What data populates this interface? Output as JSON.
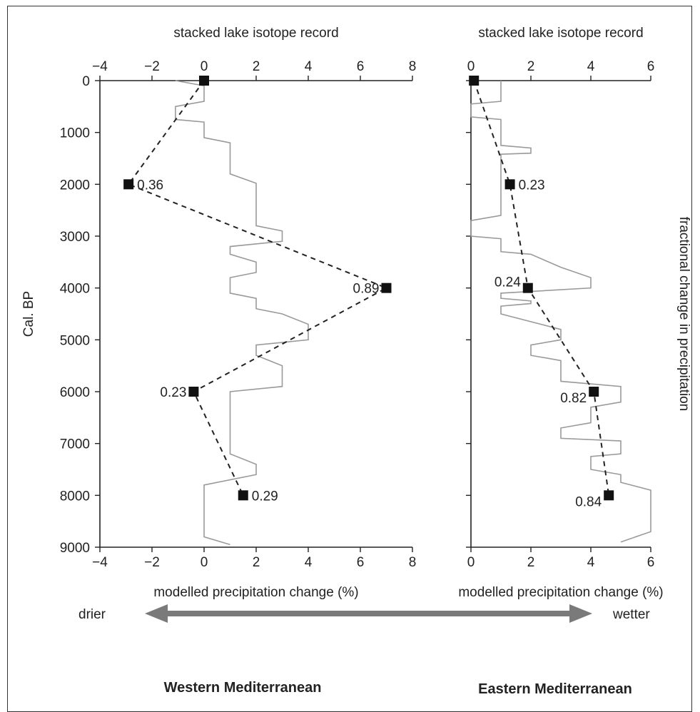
{
  "chart_data": [
    {
      "type": "line",
      "region": "Western Mediterranean",
      "top_xlabel": "stacked lake isotope record",
      "xlabel": "modelled precipitation change (%)",
      "ylabel": "Cal. BP",
      "xlim": [
        -4,
        8
      ],
      "ylim": [
        0,
        9000
      ],
      "y_inverted": true,
      "xticks": [
        -4,
        -2,
        0,
        2,
        4,
        6,
        8
      ],
      "yticks": [
        0,
        1000,
        2000,
        3000,
        4000,
        5000,
        6000,
        7000,
        8000,
        9000
      ],
      "model_points": {
        "x": [
          0,
          -2.9,
          7.0,
          -0.4,
          1.5
        ],
        "y": [
          0,
          2000,
          4000,
          6000,
          8000
        ],
        "labels": [
          "",
          "0.36",
          "0.89",
          "0.23",
          "0.29"
        ]
      },
      "isotope_record_steps": [
        [
          -1.1,
          0
        ],
        [
          0,
          100
        ],
        [
          0,
          200
        ],
        [
          0,
          300
        ],
        [
          0,
          400
        ],
        [
          -1.1,
          500
        ],
        [
          -1.1,
          600
        ],
        [
          -1.1,
          700
        ],
        [
          -1.1,
          750
        ],
        [
          0,
          800
        ],
        [
          0,
          1000
        ],
        [
          0,
          1100
        ],
        [
          1,
          1200
        ],
        [
          1,
          1400
        ],
        [
          1,
          1600
        ],
        [
          1,
          1800
        ],
        [
          2,
          1980
        ],
        [
          2,
          2200
        ],
        [
          2,
          2500
        ],
        [
          2,
          2600
        ],
        [
          2,
          2800
        ],
        [
          3,
          2900
        ],
        [
          3,
          3100
        ],
        [
          1,
          3200
        ],
        [
          1,
          3350
        ],
        [
          2,
          3500
        ],
        [
          2,
          3700
        ],
        [
          1,
          3800
        ],
        [
          1,
          3900
        ],
        [
          1,
          4000
        ],
        [
          1,
          4100
        ],
        [
          2,
          4200
        ],
        [
          2,
          4400
        ],
        [
          3,
          4500
        ],
        [
          4,
          4700
        ],
        [
          4,
          5000
        ],
        [
          2,
          5100
        ],
        [
          2,
          5300
        ],
        [
          3,
          5500
        ],
        [
          3,
          5700
        ],
        [
          3,
          5900
        ],
        [
          1,
          6000
        ],
        [
          1,
          6200
        ],
        [
          1,
          6400
        ],
        [
          1,
          6800
        ],
        [
          1,
          7000
        ],
        [
          1,
          7200
        ],
        [
          2,
          7400
        ],
        [
          2,
          7600
        ],
        [
          0,
          7800
        ],
        [
          0,
          8000
        ],
        [
          0,
          8200
        ],
        [
          0,
          8600
        ],
        [
          0,
          8800
        ],
        [
          1,
          8950
        ]
      ]
    },
    {
      "type": "line",
      "region": "Eastern Mediterranean",
      "top_xlabel": "stacked lake isotope record",
      "xlabel": "modelled precipitation change (%)",
      "y2label": "fractional change in precipitation",
      "xlim": [
        0,
        6
      ],
      "ylim": [
        0,
        9000
      ],
      "y_inverted": true,
      "xticks": [
        0,
        2,
        4,
        6
      ],
      "model_points": {
        "x": [
          0.1,
          1.3,
          1.9,
          4.1,
          4.6
        ],
        "y": [
          0,
          2000,
          4000,
          6000,
          8000
        ],
        "labels": [
          "",
          "0.23",
          "0.24",
          "0.82",
          "0.84"
        ]
      },
      "isotope_record_steps": [
        [
          1,
          0
        ],
        [
          1,
          400
        ],
        [
          0,
          450
        ],
        [
          0,
          700
        ],
        [
          1,
          750
        ],
        [
          1,
          1250
        ],
        [
          2,
          1300
        ],
        [
          2,
          1400
        ],
        [
          1,
          1420
        ],
        [
          1,
          1600
        ],
        [
          1,
          2000
        ],
        [
          1,
          2600
        ],
        [
          0,
          2700
        ],
        [
          0,
          3000
        ],
        [
          1,
          3050
        ],
        [
          1,
          3300
        ],
        [
          2,
          3350
        ],
        [
          3,
          3600
        ],
        [
          4,
          3800
        ],
        [
          4,
          4000
        ],
        [
          1,
          4100
        ],
        [
          1,
          4200
        ],
        [
          2,
          4250
        ],
        [
          2,
          4300
        ],
        [
          1,
          4350
        ],
        [
          1,
          4500
        ],
        [
          3,
          4800
        ],
        [
          3,
          5000
        ],
        [
          2,
          5100
        ],
        [
          2,
          5300
        ],
        [
          3,
          5400
        ],
        [
          3,
          5800
        ],
        [
          5,
          5900
        ],
        [
          5,
          6200
        ],
        [
          4,
          6300
        ],
        [
          4,
          6600
        ],
        [
          3,
          6700
        ],
        [
          3,
          6900
        ],
        [
          5,
          6950
        ],
        [
          5,
          7200
        ],
        [
          4,
          7250
        ],
        [
          4,
          7500
        ],
        [
          5,
          7600
        ],
        [
          5,
          7750
        ],
        [
          6,
          7900
        ],
        [
          6,
          8400
        ],
        [
          6,
          8700
        ],
        [
          5,
          8900
        ]
      ]
    }
  ],
  "legend": {
    "drier_label": "drier",
    "wetter_label": "wetter",
    "west_label": "Western Mediterranean",
    "east_label": "Eastern Mediterranean"
  },
  "colors": {
    "record_line": "#9a9a9a",
    "axis": "#222222",
    "marker": "#111111",
    "arrow": "#7a7a7a"
  }
}
